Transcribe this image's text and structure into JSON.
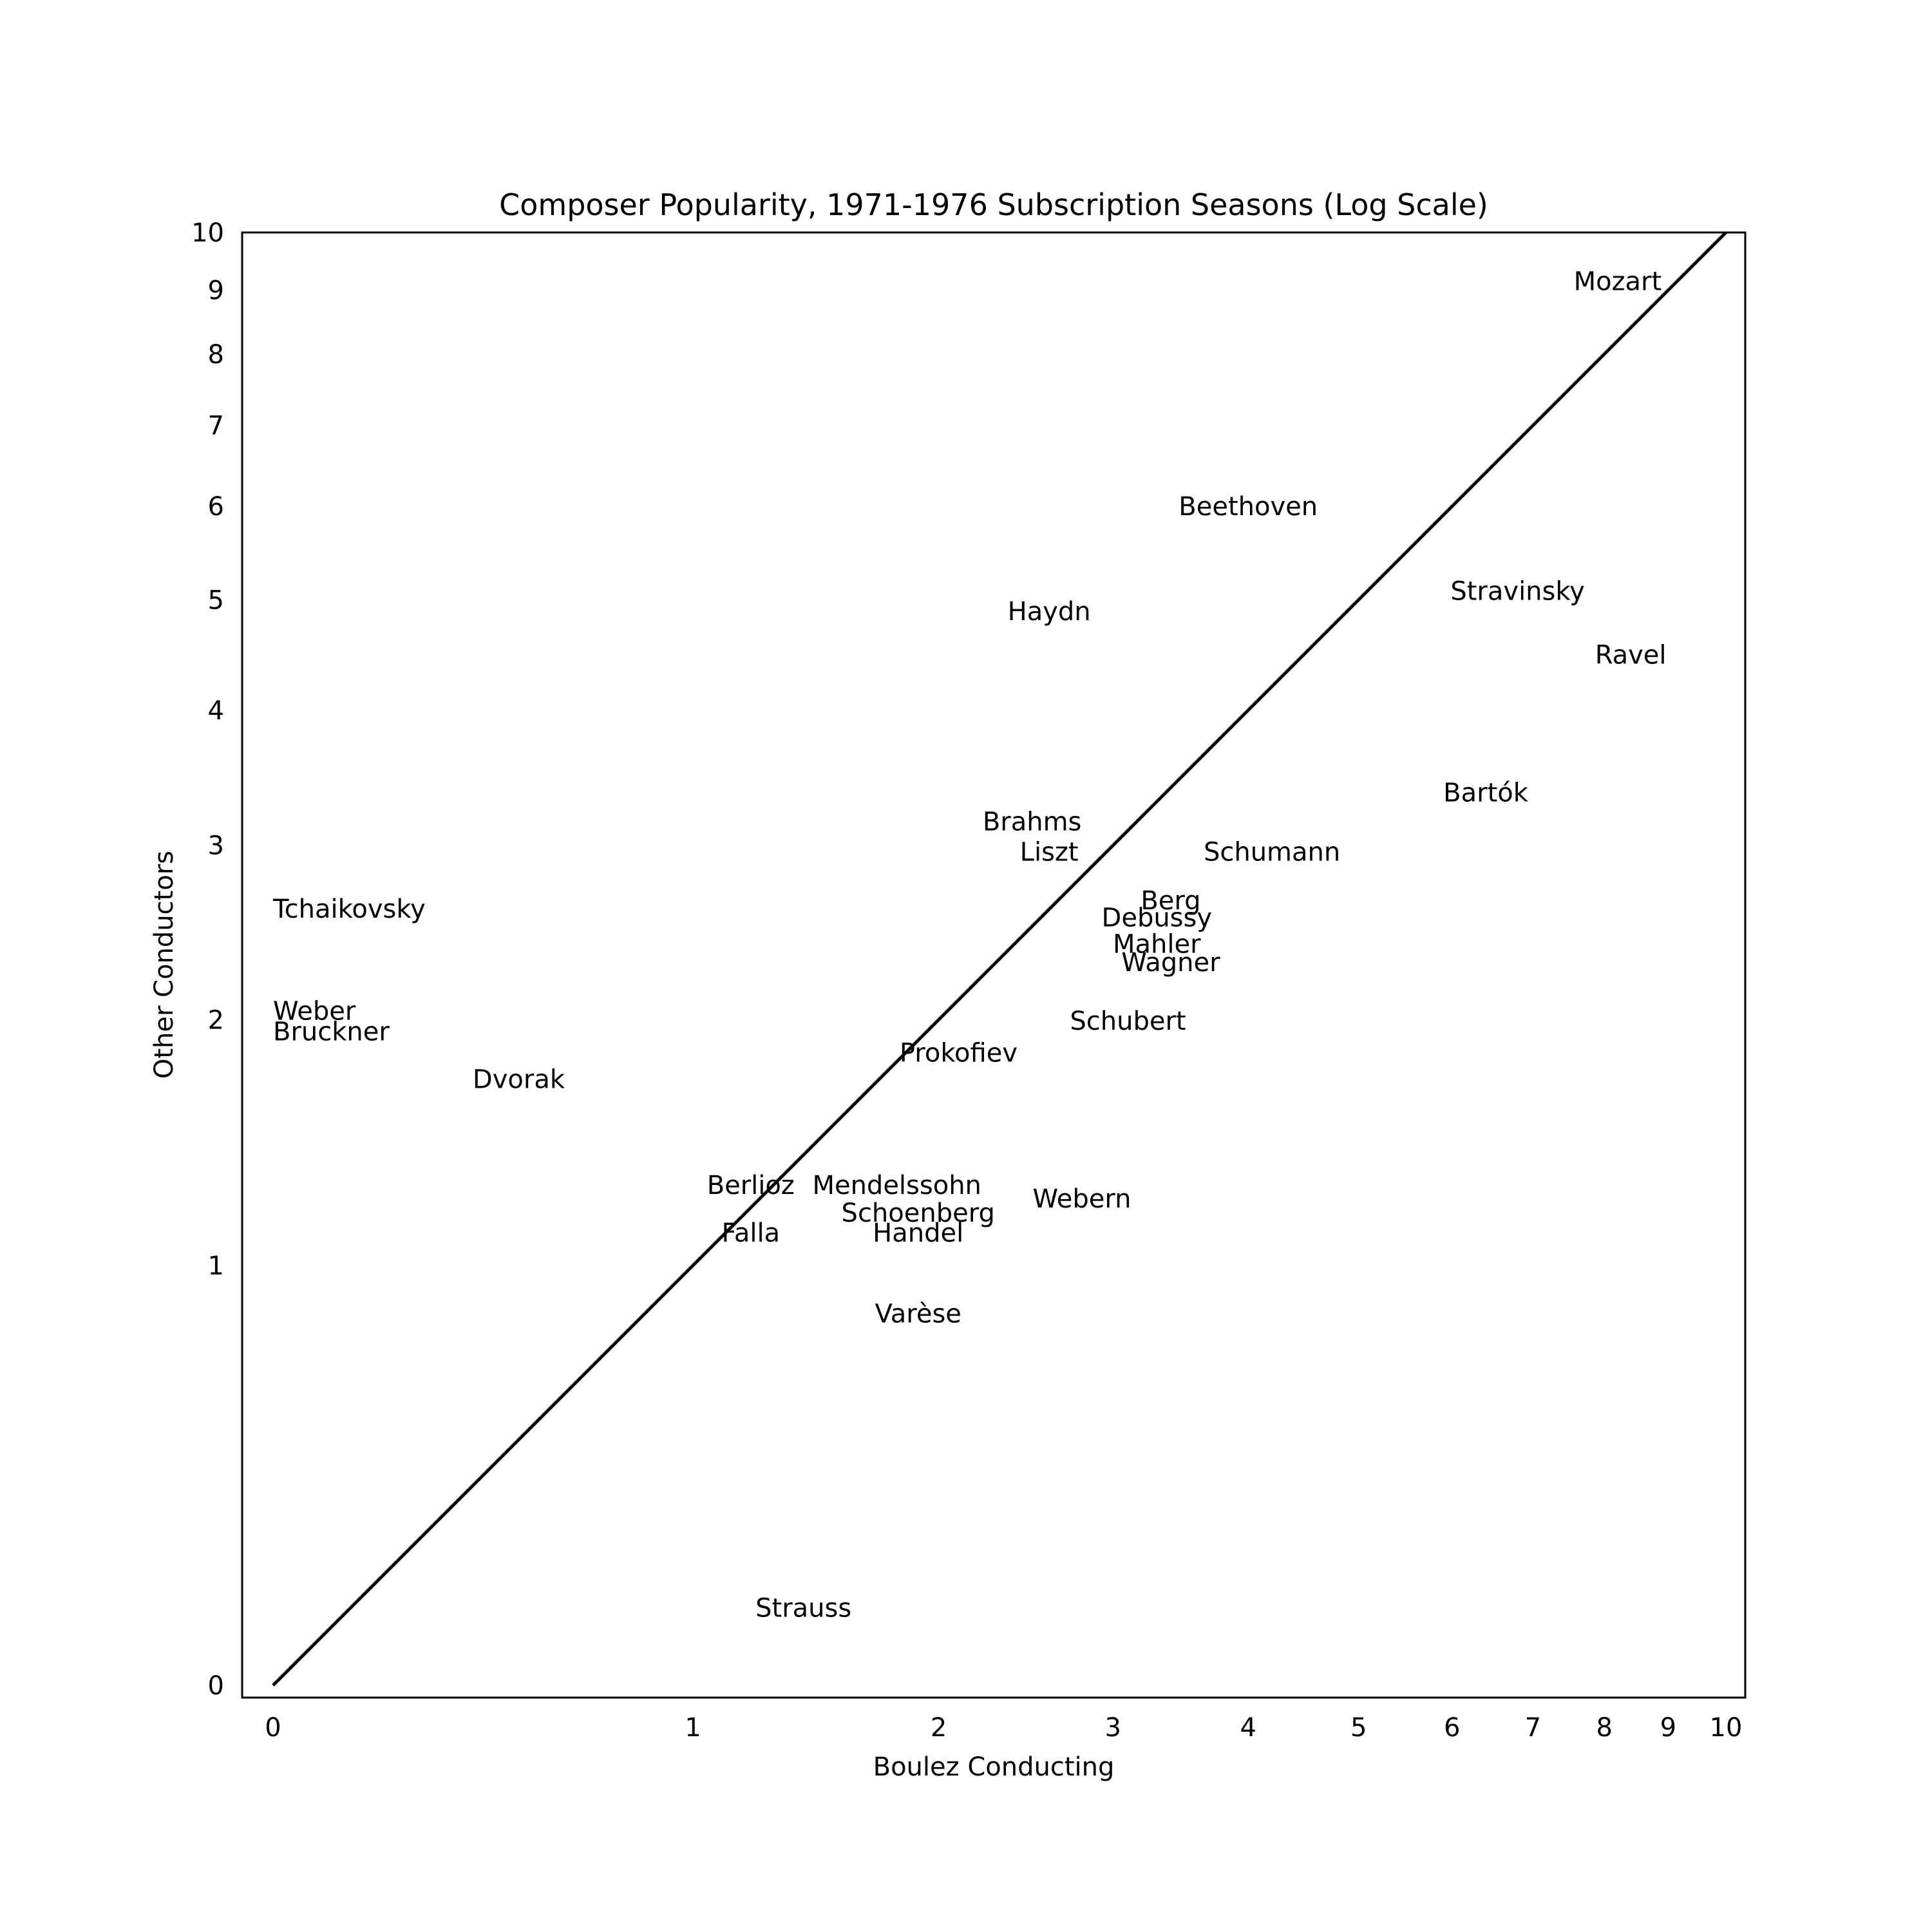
{
  "chart_data": {
    "type": "scatter",
    "title": "Composer Popularity, 1971-1976 Subscription Seasons (Log Scale)",
    "xlabel": "Boulez Conducting",
    "ylabel": "Other Conductors",
    "scale": "log(1+x)",
    "xlim": [
      0,
      10
    ],
    "ylim": [
      0,
      10
    ],
    "xticks": [
      0,
      1,
      2,
      3,
      4,
      5,
      6,
      7,
      8,
      9,
      10
    ],
    "yticks": [
      0,
      1,
      2,
      3,
      4,
      5,
      6,
      7,
      8,
      9,
      10
    ],
    "grid": false,
    "diagonal_line": true,
    "points": [
      {
        "label": "Mozart",
        "x": 8.2,
        "y": 9.0
      },
      {
        "label": "Beethoven",
        "x": 4.0,
        "y": 5.9
      },
      {
        "label": "Stravinsky",
        "x": 6.8,
        "y": 5.0
      },
      {
        "label": "Ravel",
        "x": 8.4,
        "y": 4.4
      },
      {
        "label": "Haydn",
        "x": 2.6,
        "y": 4.8
      },
      {
        "label": "Bartók",
        "x": 6.4,
        "y": 3.3
      },
      {
        "label": "Brahms",
        "x": 2.5,
        "y": 3.1
      },
      {
        "label": "Liszt",
        "x": 2.6,
        "y": 2.9
      },
      {
        "label": "Schumann",
        "x": 4.2,
        "y": 2.9
      },
      {
        "label": "Berg",
        "x": 3.4,
        "y": 2.6
      },
      {
        "label": "Debussy",
        "x": 3.3,
        "y": 2.5
      },
      {
        "label": "Mahler",
        "x": 3.3,
        "y": 2.35
      },
      {
        "label": "Wagner",
        "x": 3.4,
        "y": 2.25
      },
      {
        "label": "Tchaikovsky",
        "x": 0.0,
        "y": 2.55
      },
      {
        "label": "Weber",
        "x": 0.0,
        "y": 2.0
      },
      {
        "label": "Bruckner",
        "x": 0.0,
        "y": 1.9
      },
      {
        "label": "Schubert",
        "x": 3.1,
        "y": 1.95
      },
      {
        "label": "Prokofiev",
        "x": 2.1,
        "y": 1.8
      },
      {
        "label": "Dvorak",
        "x": 0.5,
        "y": 1.68
      },
      {
        "label": "Berlioz",
        "x": 1.2,
        "y": 1.25
      },
      {
        "label": "Mendelssohn",
        "x": 1.8,
        "y": 1.25
      },
      {
        "label": "Webern",
        "x": 2.8,
        "y": 1.2
      },
      {
        "label": "Schoenberg",
        "x": 1.9,
        "y": 1.15
      },
      {
        "label": "Falla",
        "x": 1.2,
        "y": 1.08
      },
      {
        "label": "Handel",
        "x": 1.9,
        "y": 1.08
      },
      {
        "label": "Varèse",
        "x": 1.9,
        "y": 0.82
      },
      {
        "label": "Strauss",
        "x": 1.4,
        "y": 0.12
      }
    ]
  }
}
